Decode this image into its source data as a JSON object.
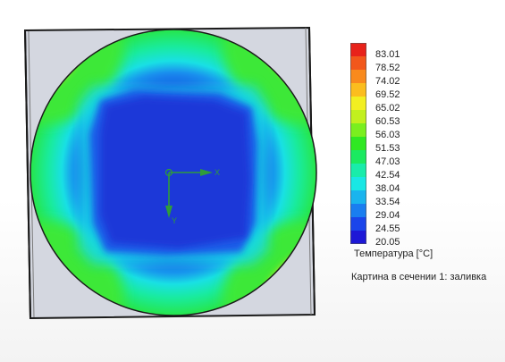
{
  "legend": {
    "title": "Температура [°C]",
    "ticks": [
      "83.01",
      "78.52",
      "74.02",
      "69.52",
      "65.02",
      "60.53",
      "56.03",
      "51.53",
      "47.03",
      "42.54",
      "38.04",
      "33.54",
      "29.04",
      "24.55",
      "20.05"
    ],
    "colors": [
      "#e8221a",
      "#f2571b",
      "#f98a1d",
      "#fbbd1e",
      "#f2ef21",
      "#c2f01e",
      "#7aef1f",
      "#2fe823",
      "#1bea60",
      "#19ecaa",
      "#19e7e4",
      "#1ab4ee",
      "#1a7ef0",
      "#1a45ea",
      "#1d18d6"
    ]
  },
  "caption": "Картина в сечении 1: заливка",
  "axes": {
    "x_label": "X",
    "y_label": "Y",
    "color": "#2f9c3a"
  },
  "colors": {
    "panel_fill": "#d3d6df",
    "panel_edge": "#1a1a1a",
    "hot": "#e82b1d",
    "core": "#1c3ad6",
    "ring": "#19dfd8"
  }
}
